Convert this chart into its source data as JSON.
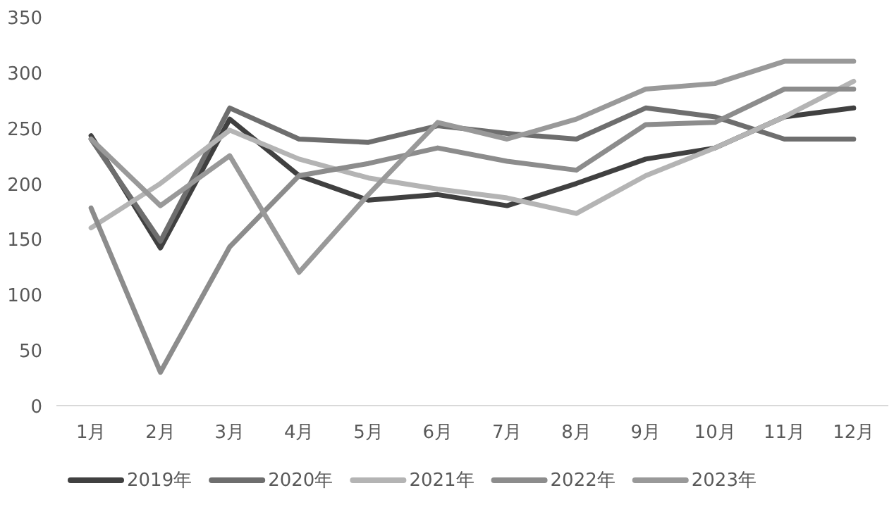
{
  "chart_data": {
    "type": "line",
    "categories": [
      "1月",
      "2月",
      "3月",
      "4月",
      "5月",
      "6月",
      "7月",
      "8月",
      "9月",
      "10月",
      "11月",
      "12月"
    ],
    "series": [
      {
        "name": "2019年",
        "color": "#404040",
        "values": [
          243,
          142,
          258,
          207,
          185,
          190,
          180,
          200,
          222,
          232,
          260,
          268
        ]
      },
      {
        "name": "2020年",
        "color": "#6e6e6e",
        "values": [
          240,
          148,
          268,
          240,
          237,
          252,
          245,
          240,
          268,
          260,
          240,
          240
        ]
      },
      {
        "name": "2021年",
        "color": "#b4b4b4",
        "values": [
          160,
          200,
          248,
          222,
          205,
          195,
          187,
          173,
          207,
          232,
          260,
          292
        ]
      },
      {
        "name": "2022年",
        "color": "#8c8c8c",
        "values": [
          178,
          30,
          143,
          207,
          218,
          232,
          220,
          212,
          253,
          255,
          285,
          285
        ]
      },
      {
        "name": "2023年",
        "color": "#999999",
        "values": [
          240,
          180,
          225,
          120,
          190,
          255,
          240,
          258,
          285,
          290,
          310,
          310
        ]
      }
    ],
    "ylim": [
      0,
      350
    ],
    "yticks": [
      0,
      50,
      100,
      150,
      200,
      250,
      300,
      350
    ],
    "grid": false,
    "legend": "bottom",
    "marker": "none",
    "line_style": "solid"
  }
}
